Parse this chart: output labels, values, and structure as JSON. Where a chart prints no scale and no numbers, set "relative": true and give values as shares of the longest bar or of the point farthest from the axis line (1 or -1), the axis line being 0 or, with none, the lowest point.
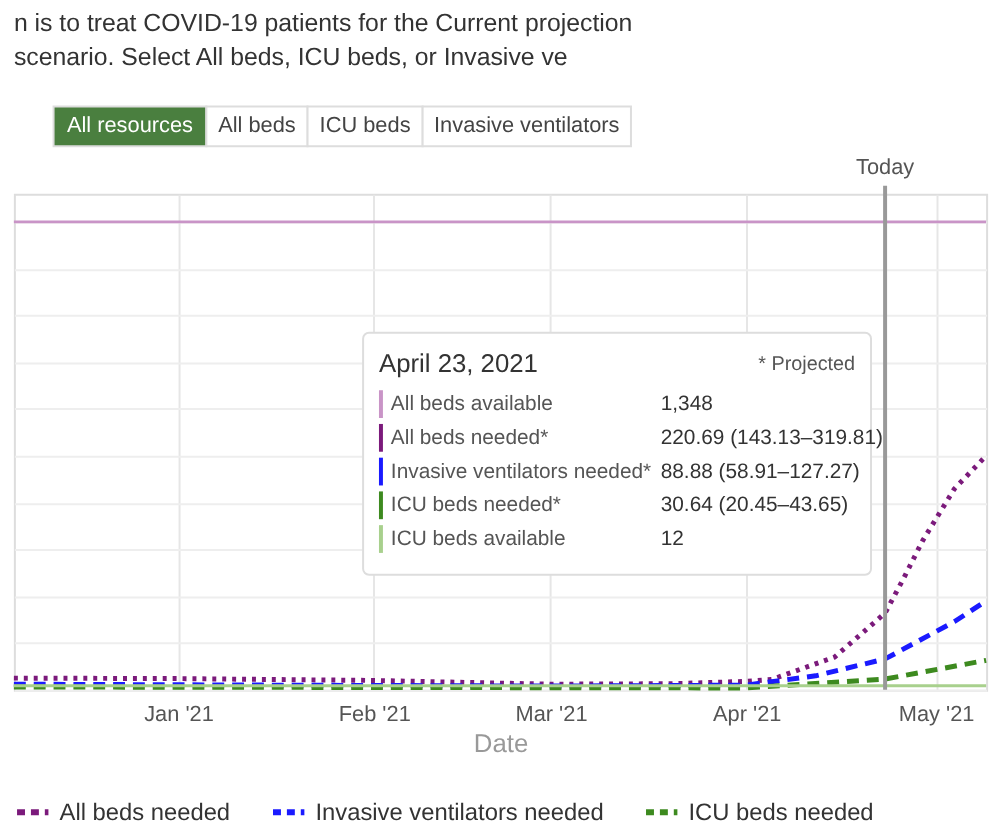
{
  "chart_data": {
    "type": "line",
    "subtitle": "n is to treat COVID-19 patients for the Current projection scenario. Select All beds, ICU beds, or Invasive ve",
    "xlabel": "Date",
    "relative": true,
    "xlim": [
      "2020-12-06",
      "2021-05-09"
    ],
    "xticks": [
      {
        "value": "2021-01-01",
        "label": "Jan '21"
      },
      {
        "value": "2021-02-01",
        "label": "Feb '21"
      },
      {
        "value": "2021-03-01",
        "label": "Mar '21"
      },
      {
        "value": "2021-04-01",
        "label": "Apr '21"
      },
      {
        "value": "2021-05-01",
        "label": "May '21"
      }
    ],
    "grid": true,
    "legend": "bottom",
    "ref_lines": [
      {
        "axis": "x",
        "value": "2021-04-23",
        "label": "Today",
        "color": "#999999"
      }
    ],
    "annotations": [
      "All resources",
      "All beds",
      "ICU beds",
      "Invasive ventilators",
      "April 23, 2021",
      "* Projected",
      "All beds available",
      "1,348",
      "All beds needed*",
      "220.69 (143.13–319.81)",
      "Invasive ventilators needed*",
      "88.88 (58.91–127.27)",
      "ICU beds needed*",
      "30.64 (20.45–43.65)",
      "ICU beds available",
      "12"
    ],
    "series": [
      {
        "color": "#c994c7",
        "line_style": "solid",
        "x": [
          "2020-12-06",
          "2021-05-09"
        ],
        "values": [
          1,
          1
        ]
      },
      {
        "name": "All beds needed",
        "color": "#7b1a7b",
        "line_style": "dotted",
        "x": [
          "2020-12-06",
          "2021-01-01",
          "2021-02-01",
          "2021-03-01",
          "2021-03-20",
          "2021-04-01",
          "2021-04-05",
          "2021-04-15",
          "2021-04-23",
          "2021-04-26",
          "2021-04-29",
          "2021-05-04",
          "2021-05-09"
        ],
        "values": [
          0.025,
          0.024,
          0.02,
          0.012,
          0.013,
          0.018,
          0.022,
          0.07,
          0.164,
          0.24,
          0.32,
          0.43,
          0.5
        ]
      },
      {
        "name": "Invasive ventilators needed",
        "color": "#1a1aff",
        "line_style": "dashed",
        "x": [
          "2020-12-06",
          "2021-03-01",
          "2021-04-01",
          "2021-04-12",
          "2021-04-23",
          "2021-05-04",
          "2021-05-09"
        ],
        "values": [
          0.012,
          0.008,
          0.01,
          0.03,
          0.066,
          0.146,
          0.19
        ]
      },
      {
        "name": "ICU beds needed",
        "color": "#3d8a1f",
        "line_style": "dashed",
        "x": [
          "2020-12-06",
          "2021-04-01",
          "2021-04-23",
          "2021-05-09"
        ],
        "values": [
          0.006,
          0.004,
          0.023,
          0.063
        ]
      },
      {
        "color": "#a8d08d",
        "line_style": "solid",
        "x": [
          "2020-12-06",
          "2021-05-09"
        ],
        "values": [
          0.0089,
          0.0089
        ]
      }
    ]
  }
}
